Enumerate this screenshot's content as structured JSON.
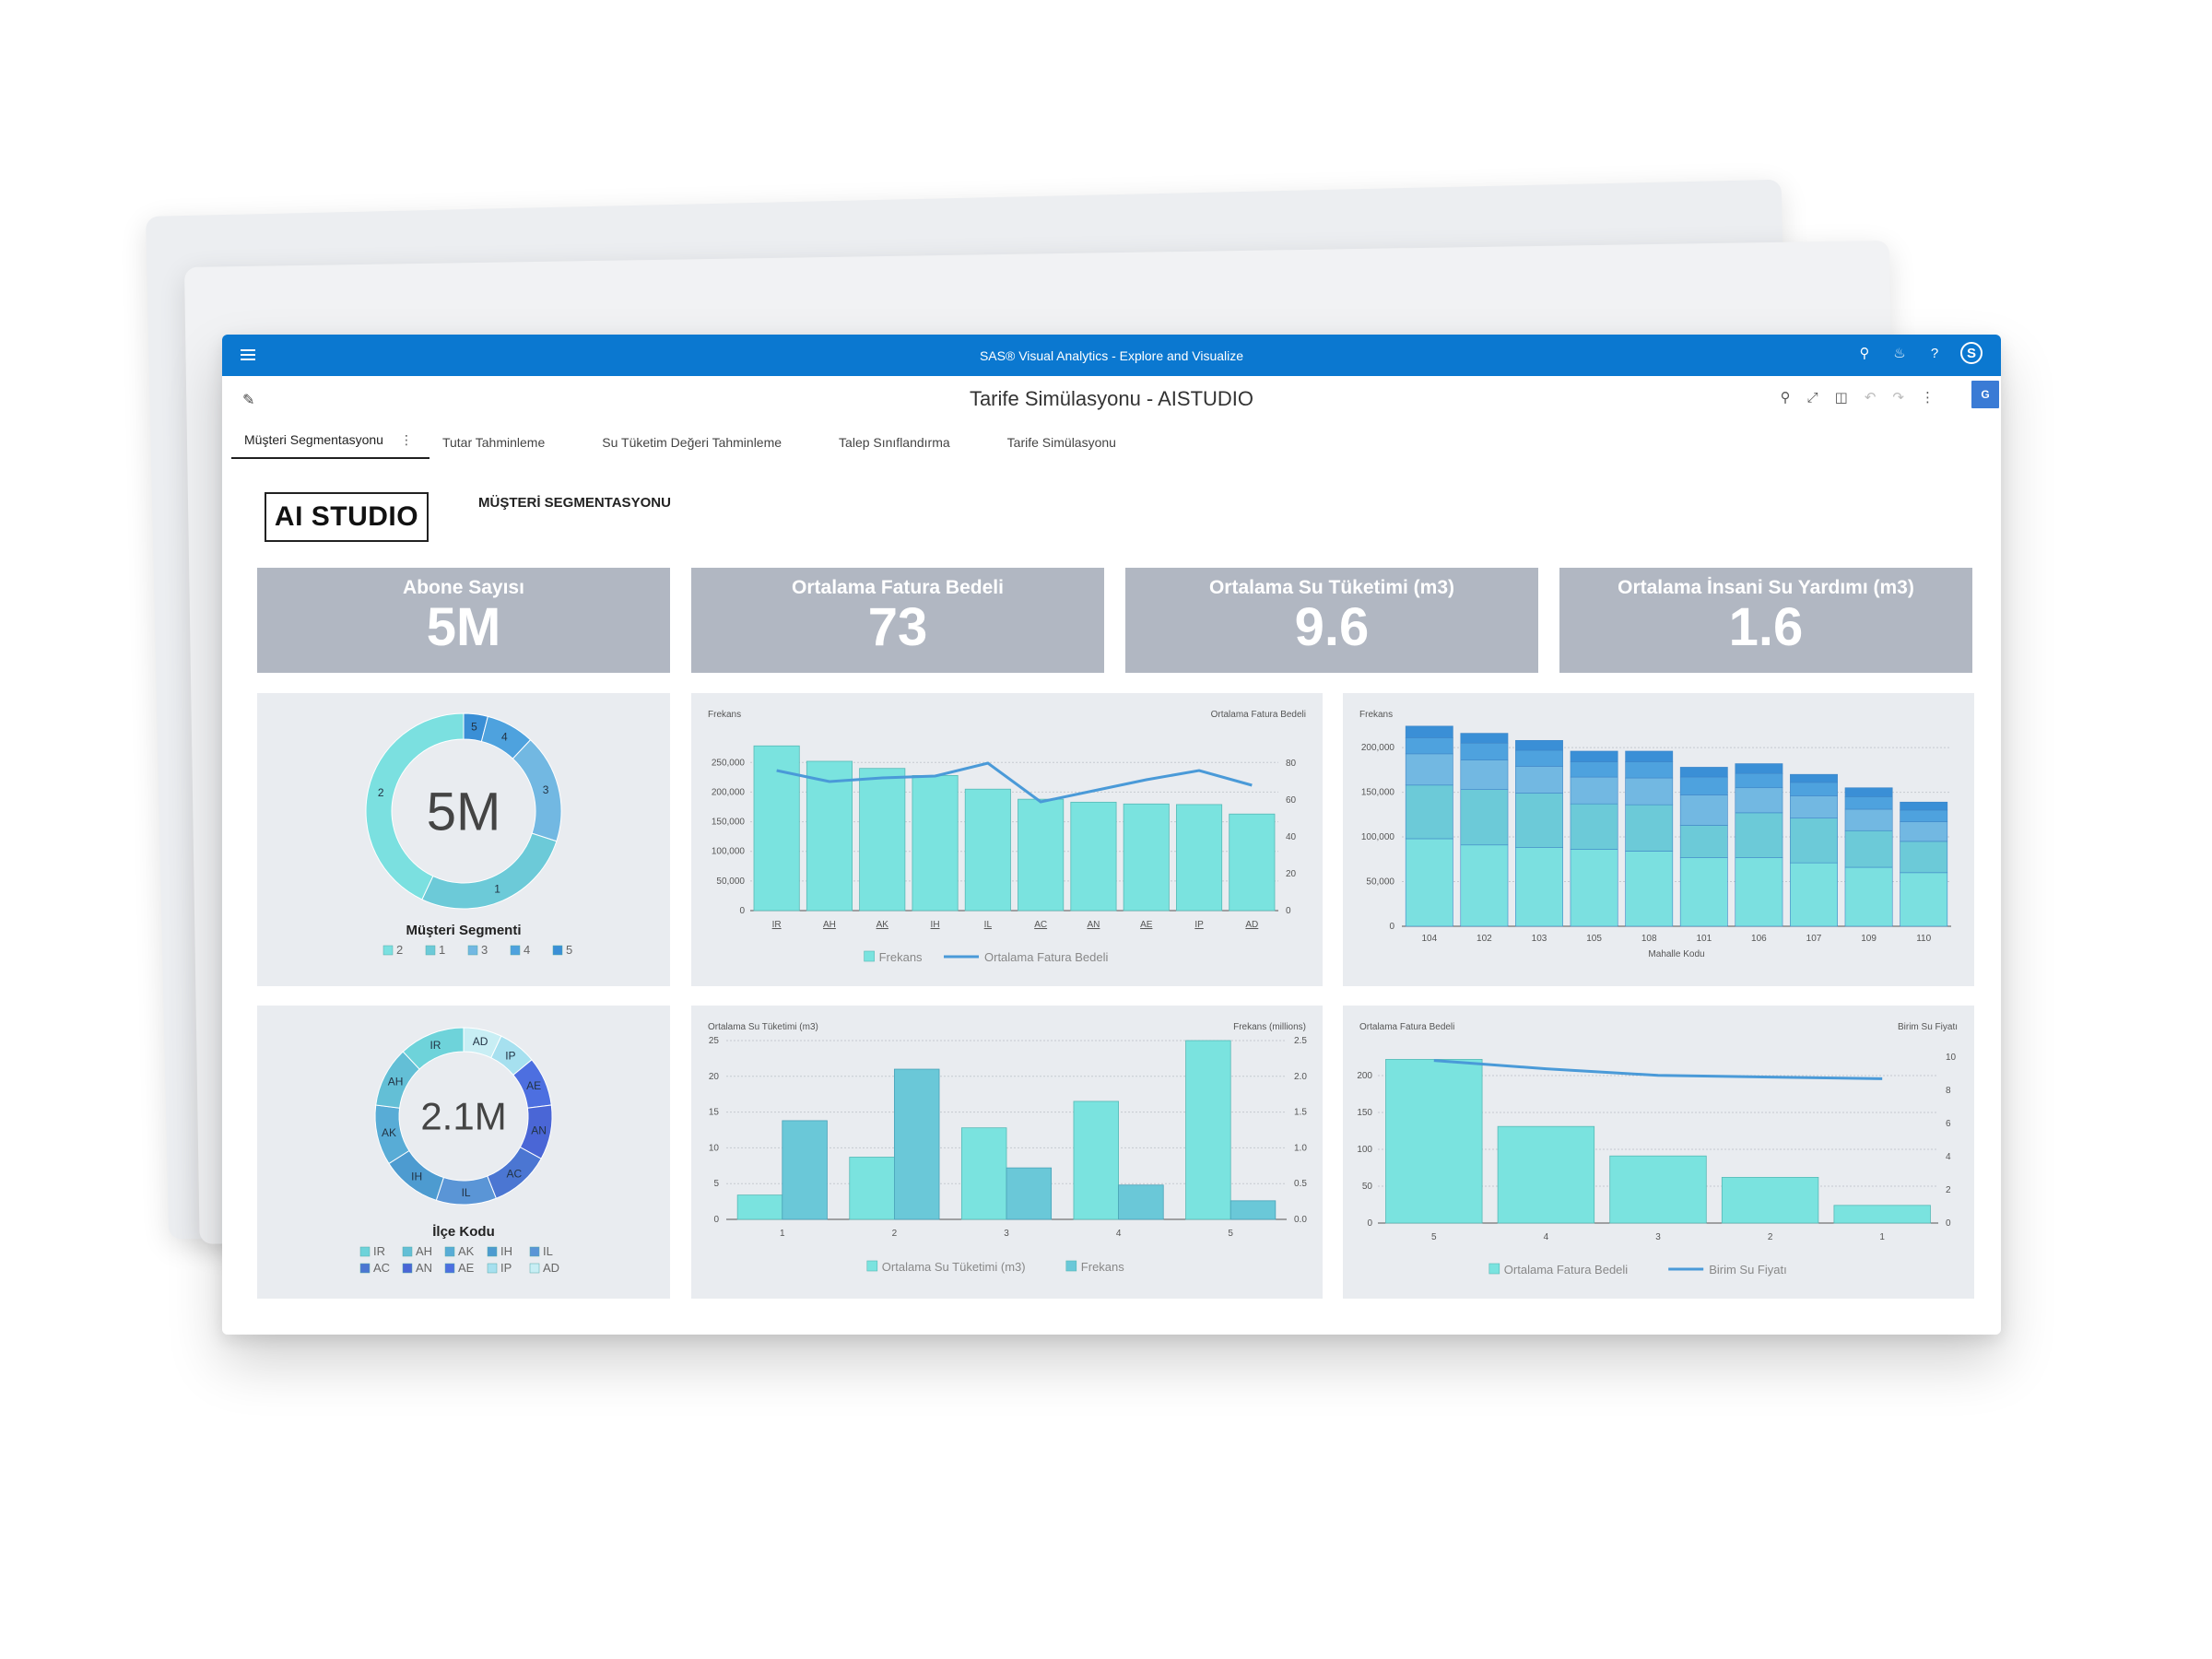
{
  "app": {
    "title": "SAS® Visual Analytics - Explore and Visualize",
    "avatar_letter": "S",
    "report_title": "Tarife Simülasyonu - AISTUDIO",
    "translate_badge": "G"
  },
  "tabs": [
    {
      "label": "Müşteri Segmentasyonu",
      "active": true
    },
    {
      "label": "Tutar Tahminleme"
    },
    {
      "label": "Su Tüketim Değeri Tahminleme"
    },
    {
      "label": "Talep Sınıflandırma"
    },
    {
      "label": "Tarife Simülasyonu"
    }
  ],
  "page": {
    "logo_text": "AI STUDIO",
    "section_title": "MÜŞTERİ SEGMENTASYONU"
  },
  "kpis": [
    {
      "label": "Abone Sayısı",
      "value": "5M"
    },
    {
      "label": "Ortalama Fatura Bedeli",
      "value": "73"
    },
    {
      "label": "Ortalama Su Tüketimi (m3)",
      "value": "9.6"
    },
    {
      "label": "Ortalama İnsani Su Yardımı (m3)",
      "value": "1.6"
    }
  ],
  "chart_data": [
    {
      "type": "pie",
      "donut": true,
      "center_text": "5M",
      "title": "Müşteri Segmenti",
      "slices": [
        {
          "label": "5",
          "value": 4,
          "color": "#3a8fd6"
        },
        {
          "label": "4",
          "value": 8,
          "color": "#4ea2de"
        },
        {
          "label": "3",
          "value": 18,
          "color": "#72b8e2"
        },
        {
          "label": "1",
          "value": 27,
          "color": "#6ccad8"
        },
        {
          "label": "2",
          "value": 43,
          "color": "#7be0e0"
        }
      ],
      "legend": [
        {
          "label": "2",
          "color": "#7be0e0"
        },
        {
          "label": "1",
          "color": "#6ccad8"
        },
        {
          "label": "3",
          "color": "#72b8e2"
        },
        {
          "label": "4",
          "color": "#4ea2de"
        },
        {
          "label": "5",
          "color": "#3a8fd6"
        }
      ]
    },
    {
      "type": "bar",
      "title": "",
      "ylabel": "Frekans",
      "y2label": "Ortalama Fatura Bedeli",
      "categories": [
        "IR",
        "AH",
        "AK",
        "IH",
        "IL",
        "AC",
        "AN",
        "AE",
        "IP",
        "AD"
      ],
      "ylim": [
        0,
        280000
      ],
      "y_ticks": [
        "0",
        "50,000",
        "100,000",
        "150,000",
        "200,000",
        "250,000"
      ],
      "y2lim": [
        0,
        90
      ],
      "y2_ticks": [
        "0",
        "20",
        "40",
        "60",
        "80"
      ],
      "series": [
        {
          "name": "Frekans",
          "type": "bar",
          "color": "#7ae3df",
          "values": [
            278000,
            252000,
            240000,
            228000,
            205000,
            188000,
            183000,
            180000,
            179000,
            163000
          ]
        },
        {
          "name": "Ortalama Fatura Bedeli",
          "type": "line",
          "color": "#4a9ad8",
          "values": [
            76,
            70,
            72,
            73,
            80,
            59,
            65,
            71,
            76,
            68
          ]
        }
      ],
      "legend": [
        {
          "label": "Frekans",
          "kind": "box",
          "color": "#7ae3df"
        },
        {
          "label": "Ortalama Fatura Bedeli",
          "kind": "line",
          "color": "#4a9ad8"
        }
      ]
    },
    {
      "type": "bar",
      "stacked": true,
      "ylabel": "Frekans",
      "xlabel": "Mahalle Kodu",
      "categories": [
        "104",
        "102",
        "103",
        "105",
        "108",
        "101",
        "106",
        "107",
        "109",
        "110"
      ],
      "ylim": [
        0,
        230000
      ],
      "y_ticks": [
        "0",
        "50,000",
        "100,000",
        "150,000",
        "200,000"
      ],
      "series": [
        {
          "name": "2",
          "color": "#7be0e0",
          "values": [
            98000,
            91000,
            88000,
            86000,
            84000,
            77000,
            77000,
            71000,
            66000,
            60000
          ]
        },
        {
          "name": "1",
          "color": "#6ccad8",
          "values": [
            60000,
            62000,
            61000,
            51000,
            52000,
            36000,
            50000,
            50000,
            41000,
            35000
          ]
        },
        {
          "name": "3",
          "color": "#72b8e2",
          "values": [
            35000,
            33000,
            30000,
            30000,
            30000,
            34000,
            28000,
            25000,
            24000,
            22000
          ]
        },
        {
          "name": "4",
          "color": "#4ea2de",
          "values": [
            18000,
            19000,
            18000,
            17000,
            18000,
            20000,
            16000,
            15000,
            14000,
            13000
          ]
        },
        {
          "name": "5",
          "color": "#3a8fd6",
          "values": [
            13000,
            11000,
            11000,
            12000,
            12000,
            11000,
            11000,
            9000,
            10000,
            9000
          ]
        }
      ]
    },
    {
      "type": "pie",
      "donut": true,
      "center_text": "2.1M",
      "title": "İlçe Kodu",
      "slices": [
        {
          "label": "AD",
          "value": 7,
          "color": "#c8eef4"
        },
        {
          "label": "IP",
          "value": 7,
          "color": "#a6e0ef"
        },
        {
          "label": "AE",
          "value": 9,
          "color": "#4d6fe0"
        },
        {
          "label": "AN",
          "value": 10,
          "color": "#4a66d6"
        },
        {
          "label": "AC",
          "value": 11,
          "color": "#4b76d2"
        },
        {
          "label": "IL",
          "value": 11,
          "color": "#5a95d6"
        },
        {
          "label": "IH",
          "value": 11,
          "color": "#4d9bd0"
        },
        {
          "label": "AK",
          "value": 11,
          "color": "#58acd6"
        },
        {
          "label": "AH",
          "value": 11,
          "color": "#63bfd6"
        },
        {
          "label": "IR",
          "value": 12,
          "color": "#6ed3da"
        }
      ],
      "legend": [
        {
          "label": "IR",
          "color": "#6ed3da"
        },
        {
          "label": "AH",
          "color": "#63bfd6"
        },
        {
          "label": "AK",
          "color": "#58acd6"
        },
        {
          "label": "IH",
          "color": "#4d9bd0"
        },
        {
          "label": "IL",
          "color": "#5a95d6"
        },
        {
          "label": "AC",
          "color": "#4b76d2"
        },
        {
          "label": "AN",
          "color": "#4a66d6"
        },
        {
          "label": "AE",
          "color": "#4d6fe0"
        },
        {
          "label": "IP",
          "color": "#a6e0ef"
        },
        {
          "label": "AD",
          "color": "#c8eef4"
        }
      ]
    },
    {
      "type": "bar",
      "grouped": true,
      "ylabel": "Ortalama Su Tüketimi (m3)",
      "y2label": "Frekans (millions)",
      "categories": [
        "1",
        "2",
        "3",
        "4",
        "5"
      ],
      "ylim": [
        0,
        25
      ],
      "y_ticks": [
        "0",
        "5",
        "10",
        "15",
        "20",
        "25"
      ],
      "y2lim": [
        0,
        2.5
      ],
      "y2_ticks": [
        "0.0",
        "0.5",
        "1.0",
        "1.5",
        "2.0",
        "2.5"
      ],
      "series": [
        {
          "name": "Ortalama Su Tüketimi (m3)",
          "color": "#7ae3df",
          "axis": "left",
          "values": [
            3.4,
            8.7,
            12.8,
            16.5,
            25
          ]
        },
        {
          "name": "Frekans",
          "color": "#6ac8d8",
          "axis": "right",
          "values": [
            1.38,
            2.1,
            0.72,
            0.48,
            0.26
          ]
        }
      ],
      "legend": [
        {
          "label": "Ortalama Su Tüketimi (m3)",
          "kind": "box",
          "color": "#7ae3df"
        },
        {
          "label": "Frekans",
          "kind": "box",
          "color": "#6ac8d8"
        }
      ]
    },
    {
      "type": "bar",
      "ylabel": "Ortalama Fatura Bedeli",
      "y2label": "Birim Su Fiyatı",
      "categories": [
        "5",
        "4",
        "3",
        "2",
        "1"
      ],
      "ylim": [
        0,
        225
      ],
      "y_ticks": [
        "0",
        "50",
        "100",
        "150",
        "200"
      ],
      "y2lim": [
        0,
        10
      ],
      "y2_ticks": [
        "0",
        "2",
        "4",
        "6",
        "8",
        "10"
      ],
      "series": [
        {
          "name": "Ortalama Fatura Bedeli",
          "type": "bar",
          "color": "#7ae3df",
          "values": [
            222,
            131,
            91,
            62,
            24
          ]
        },
        {
          "name": "Birim Su Fiyatı",
          "type": "line",
          "color": "#4a9ad8",
          "values": [
            9.8,
            9.3,
            8.9,
            8.8,
            8.7
          ]
        }
      ],
      "legend": [
        {
          "label": "Ortalama Fatura Bedeli",
          "kind": "box",
          "color": "#7ae3df"
        },
        {
          "label": "Birim Su Fiyatı",
          "kind": "line",
          "color": "#4a9ad8"
        }
      ]
    }
  ]
}
